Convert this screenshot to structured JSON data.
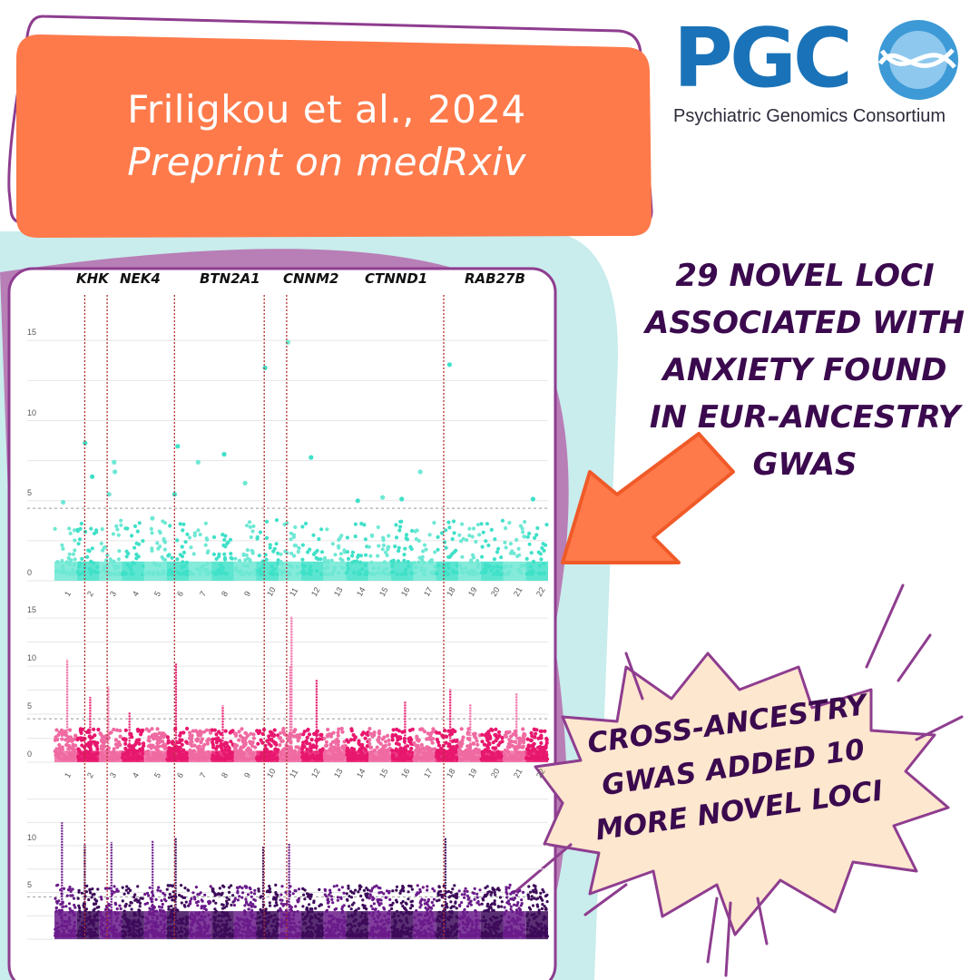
{
  "header": {
    "line1": "Friligkou et al., 2024",
    "line2": "Preprint on medRxiv"
  },
  "logo": {
    "text": "PGC",
    "subtitle": "Psychiatric Genomics Consortium",
    "icon": "globe-dna-icon",
    "color": "#1a73b8"
  },
  "callouts": {
    "eur": "29 novel loci associated with anxiety found in EUR-ancestry GWAS",
    "cross": "Cross-ancestry GWAS added 10 more novel loci"
  },
  "colors": {
    "orange": "#fe7a4b",
    "teal_bg": "#c9ecec",
    "purple_bg": "#b87eb6",
    "frame": "#8e3d8f",
    "panel_top": "#40e0c8",
    "panel_mid": "#e8176e",
    "panel_bottom": "#3d0a5a"
  },
  "chart_data": {
    "type": "scatter",
    "title": "",
    "genes": [
      "KHK",
      "NEK4",
      "BTN2A1",
      "CNNM2",
      "CTNND1",
      "RAB27B"
    ],
    "gene_chromosomes": [
      2,
      3,
      6,
      10,
      11,
      18
    ],
    "chromosomes": [
      "1",
      "2",
      "3",
      "4",
      "5",
      "6",
      "7",
      "8",
      "9",
      "10",
      "11",
      "12",
      "13",
      "14",
      "15",
      "16",
      "17",
      "18",
      "19",
      "20",
      "21",
      "22"
    ],
    "panels": [
      {
        "name": "",
        "yticks": [
          0,
          5,
          10,
          15
        ],
        "ylim": [
          0,
          17
        ],
        "threshold": 7.3,
        "peaks": [
          [
            1,
            4.9
          ],
          [
            2,
            8.6
          ],
          [
            2,
            6.5
          ],
          [
            3,
            7.4
          ],
          [
            3,
            6.8
          ],
          [
            3,
            5.4
          ],
          [
            5,
            3.9
          ],
          [
            6,
            8.4
          ],
          [
            6,
            5.4
          ],
          [
            7,
            7.4
          ],
          [
            8,
            7.9
          ],
          [
            9,
            6.1
          ],
          [
            10,
            13.3
          ],
          [
            11,
            14.9
          ],
          [
            12,
            7.7
          ],
          [
            14,
            5.0
          ],
          [
            15,
            5.2
          ],
          [
            16,
            5.1
          ],
          [
            17,
            6.8
          ],
          [
            18,
            13.5
          ],
          [
            22,
            5.1
          ]
        ]
      },
      {
        "name": "",
        "yticks": [
          0,
          5,
          10,
          15
        ],
        "ylim": [
          0,
          17
        ],
        "threshold": 7.3,
        "peaks": [
          [
            1,
            10.7
          ],
          [
            2,
            6.8
          ],
          [
            3,
            7.9
          ],
          [
            4,
            5.2
          ],
          [
            6,
            10.3
          ],
          [
            8,
            5.9
          ],
          [
            11,
            15.2
          ],
          [
            11,
            10.0
          ],
          [
            12,
            8.6
          ],
          [
            16,
            6.3
          ],
          [
            18,
            7.6
          ],
          [
            19,
            6.1
          ],
          [
            21,
            7.2
          ]
        ]
      },
      {
        "name": "",
        "yticks": [
          5,
          10
        ],
        "ylim": [
          0,
          17
        ],
        "threshold": 7.3,
        "peaks": [
          [
            1,
            12.5
          ],
          [
            2,
            10.1
          ],
          [
            3,
            10.4
          ],
          [
            5,
            10.6
          ],
          [
            6,
            10.8
          ],
          [
            10,
            9.9
          ],
          [
            11,
            10.2
          ],
          [
            18,
            10.8
          ]
        ]
      }
    ]
  }
}
